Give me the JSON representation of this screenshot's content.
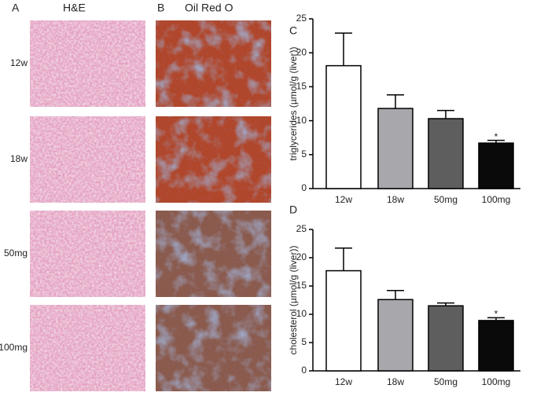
{
  "histology": {
    "panel_a": "A",
    "title_a": "H&E",
    "panel_b": "B",
    "title_b": "Oil Red O",
    "rows": [
      "12w",
      "18w",
      "50mg",
      "100mg"
    ]
  },
  "chart_data": [
    {
      "type": "bar",
      "panel": "C",
      "ylabel": "triglycerides (µmol/g (liver))",
      "categories": [
        "12w",
        "18w",
        "50mg",
        "100mg"
      ],
      "values": [
        18.1,
        11.8,
        10.3,
        6.7
      ],
      "errors": [
        4.8,
        2.0,
        1.2,
        0.4
      ],
      "colors": [
        "#ffffff",
        "#a8a7ac",
        "#5e5e5e",
        "#0a0a0a"
      ],
      "significance": [
        null,
        null,
        null,
        "*"
      ],
      "ylim": [
        0,
        25
      ],
      "yticks": [
        0,
        5,
        10,
        15,
        20,
        25
      ]
    },
    {
      "type": "bar",
      "panel": "D",
      "ylabel": "cholesterol (µmol/g (liver))",
      "categories": [
        "12w",
        "18w",
        "50mg",
        "100mg"
      ],
      "values": [
        17.7,
        12.6,
        11.5,
        8.9
      ],
      "errors": [
        4.0,
        1.6,
        0.5,
        0.5
      ],
      "colors": [
        "#ffffff",
        "#a8a7ac",
        "#5e5e5e",
        "#0a0a0a"
      ],
      "significance": [
        null,
        null,
        null,
        "*"
      ],
      "ylim": [
        0,
        25
      ],
      "yticks": [
        0,
        5,
        10,
        15,
        20,
        25
      ]
    }
  ]
}
